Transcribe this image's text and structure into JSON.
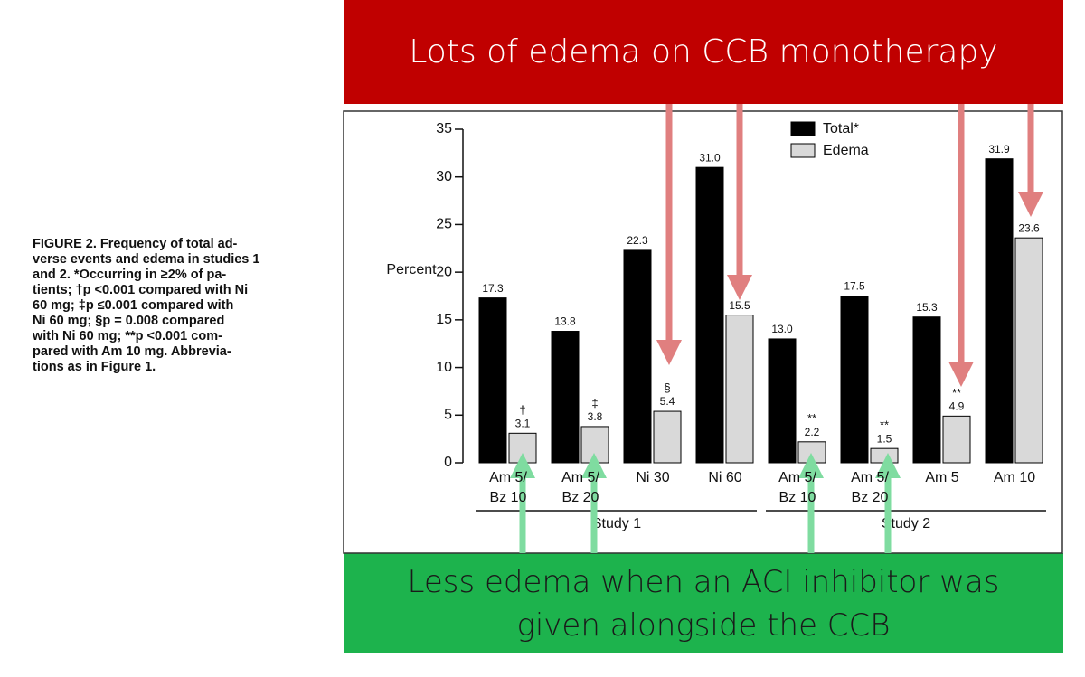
{
  "banner_top": "Lots of edema on CCB monotherapy",
  "banner_bottom": "Less edema when an ACI inhibitor was\ngiven alongside the CCB",
  "caption": [
    "FIGURE 2. Frequency of total ad-",
    "verse events and edema in studies 1",
    "and 2. *Occurring in ≥2% of pa-",
    "tients; †p <0.001 compared with Ni",
    "60 mg; ‡p ≤0.001 compared with",
    "Ni 60 mg; §p = 0.008 compared",
    "with Ni 60 mg; **p <0.001 com-",
    "pared with Am 10 mg. Abbrevia-",
    "tions as in Figure 1."
  ],
  "chart_data": {
    "type": "bar",
    "y_label": "Percent",
    "categories": [
      "Am 5/\nBz 10",
      "Am 5/\nBz 20",
      "Ni 30",
      "Ni 60",
      "Am 5/\nBz 10",
      "Am 5/\nBz 20",
      "Am 5",
      "Am 10"
    ],
    "groups": [
      {
        "name": "Study 1",
        "from": 0,
        "to": 3
      },
      {
        "name": "Study 2",
        "from": 4,
        "to": 7
      }
    ],
    "series": [
      {
        "name": "Total*",
        "color": "#000000",
        "values": [
          17.3,
          13.8,
          22.3,
          31.0,
          13.0,
          17.5,
          15.3,
          31.9
        ],
        "value_labels": [
          "17.3",
          "13.8",
          "22.3",
          "31.0",
          "13.0",
          "17.5",
          "15.3",
          "31.9"
        ]
      },
      {
        "name": "Edema",
        "color": "#d9d9d9",
        "values": [
          3.1,
          3.8,
          5.4,
          15.5,
          2.2,
          1.5,
          4.9,
          23.6
        ],
        "value_labels": [
          "3.1",
          "3.8",
          "5.4",
          "15.5",
          "2.2",
          "1.5",
          "4.9",
          "23.6"
        ],
        "annotations": [
          "†",
          "‡",
          "§",
          null,
          "**",
          "**",
          "**",
          null
        ]
      }
    ],
    "ylim": [
      0,
      35
    ],
    "yticks": [
      0,
      5,
      10,
      15,
      20,
      25,
      30,
      35
    ],
    "legend": "top-right"
  }
}
